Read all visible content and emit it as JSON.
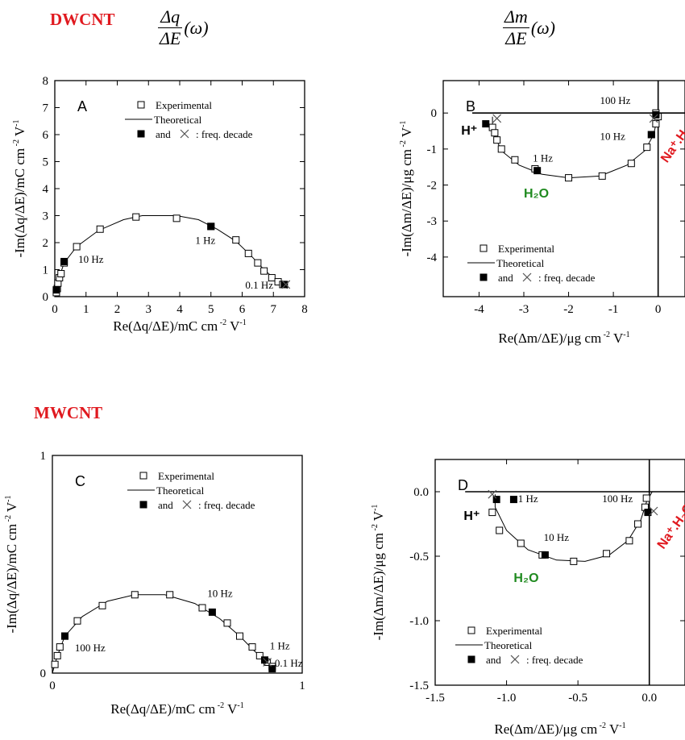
{
  "page": {
    "dwcnt_label": "DWCNT",
    "mwcnt_label": "MWCNT",
    "formula_left": {
      "num": "Δq",
      "den": "ΔE",
      "arg": "(ω)"
    },
    "formula_right": {
      "num": "Δm",
      "den": "ΔE",
      "arg": "(ω)"
    }
  },
  "colors": {
    "section": "#e0191f",
    "water": "#1f8a1f",
    "cation": "#e0191f"
  },
  "chart_data": [
    {
      "id": "A",
      "type": "scatter",
      "panel_label": "A",
      "xlabel": "Re(Δq/ΔE)/mC cm",
      "xlabel_sup": "-2",
      "xlabel_tail": " V",
      "xlabel_sup2": "-1",
      "ylabel": "-Im(Δq/ΔE)/mC cm",
      "ylabel_sup": "-2",
      "ylabel_tail": " V",
      "ylabel_sup2": "-1",
      "xlim": [
        0,
        8
      ],
      "ylim": [
        0,
        8
      ],
      "xticks": [
        "0",
        "1",
        "2",
        "3",
        "4",
        "5",
        "6",
        "7",
        "8"
      ],
      "yticks": [
        "0",
        "1",
        "2",
        "3",
        "4",
        "5",
        "6",
        "7",
        "8"
      ],
      "legend": {
        "experimental": "Experimental",
        "theoretical": "Theoretical",
        "decade": "and",
        "decade2": ": freq. decade",
        "position": "top-right"
      },
      "experimental": [
        [
          0.05,
          0.15
        ],
        [
          0.08,
          0.3
        ],
        [
          0.1,
          0.5
        ],
        [
          0.15,
          0.7
        ],
        [
          0.2,
          0.85
        ],
        [
          0.3,
          1.25
        ],
        [
          0.7,
          1.85
        ],
        [
          1.45,
          2.5
        ],
        [
          2.6,
          2.95
        ],
        [
          3.9,
          2.9
        ],
        [
          5.0,
          2.6
        ],
        [
          5.8,
          2.1
        ],
        [
          6.2,
          1.6
        ],
        [
          6.5,
          1.25
        ],
        [
          6.7,
          0.95
        ],
        [
          6.95,
          0.7
        ],
        [
          7.15,
          0.55
        ],
        [
          7.3,
          0.45
        ]
      ],
      "theoretical": [
        [
          0.0,
          0.0
        ],
        [
          0.05,
          0.3
        ],
        [
          0.12,
          0.65
        ],
        [
          0.3,
          1.25
        ],
        [
          0.7,
          1.85
        ],
        [
          1.4,
          2.45
        ],
        [
          2.2,
          2.85
        ],
        [
          2.8,
          3.0
        ],
        [
          3.9,
          3.0
        ],
        [
          4.6,
          2.85
        ],
        [
          5.2,
          2.5
        ],
        [
          5.8,
          2.05
        ],
        [
          6.3,
          1.5
        ],
        [
          6.7,
          1.0
        ],
        [
          7.0,
          0.7
        ],
        [
          7.3,
          0.45
        ],
        [
          7.45,
          0.3
        ]
      ],
      "filled": [
        [
          0.05,
          0.25
        ],
        [
          0.3,
          1.3
        ],
        [
          5.0,
          2.6
        ],
        [
          7.35,
          0.45
        ]
      ],
      "crosses": [
        [
          7.4,
          0.45
        ]
      ],
      "annotations": [
        {
          "text": "10 Hz",
          "x": 0.75,
          "y": 1.25
        },
        {
          "text": "1 Hz",
          "x": 4.5,
          "y": 1.95
        },
        {
          "text": "0.1 Hz",
          "x": 6.1,
          "y": 0.3
        }
      ]
    },
    {
      "id": "B",
      "type": "scatter",
      "panel_label": "B",
      "xlabel": "Re(Δm/ΔE)/μg cm",
      "xlabel_sup": "-2",
      "xlabel_tail": " V",
      "xlabel_sup2": "-1",
      "ylabel": "-Im(Δm/ΔE)/μg cm",
      "ylabel_sup": "-2",
      "ylabel_tail": " V",
      "ylabel_sup2": "-1",
      "xlim": [
        -4.8,
        0.6
      ],
      "ylim": [
        -5.1,
        0.9
      ],
      "xticks": [
        {
          "v": -4,
          "t": "-4"
        },
        {
          "v": -3,
          "t": "-3"
        },
        {
          "v": -2,
          "t": "-2"
        },
        {
          "v": -1,
          "t": "-1"
        },
        {
          "v": 0,
          "t": "0"
        }
      ],
      "yticks": [
        {
          "v": 0,
          "t": "0"
        },
        {
          "v": -1,
          "t": "-1"
        },
        {
          "v": -2,
          "t": "-2"
        },
        {
          "v": -3,
          "t": "-3"
        },
        {
          "v": -4,
          "t": "-4"
        }
      ],
      "legend": {
        "experimental": "Experimental",
        "theoretical": "Theoretical",
        "decade": "and",
        "decade2": ": freq. decade",
        "position": "bottom-left"
      },
      "experimental": [
        [
          -3.7,
          -0.4
        ],
        [
          -3.65,
          -0.55
        ],
        [
          -3.6,
          -0.75
        ],
        [
          -3.5,
          -1.0
        ],
        [
          -3.2,
          -1.3
        ],
        [
          -2.75,
          -1.55
        ],
        [
          -2.0,
          -1.8
        ],
        [
          -1.25,
          -1.75
        ],
        [
          -0.6,
          -1.4
        ],
        [
          -0.25,
          -0.95
        ],
        [
          -0.15,
          -0.6
        ],
        [
          -0.05,
          -0.3
        ],
        [
          0.0,
          -0.1
        ],
        [
          -0.05,
          0.0
        ]
      ],
      "theoretical": [
        [
          -3.7,
          -0.1
        ],
        [
          -3.7,
          -0.5
        ],
        [
          -3.5,
          -1.05
        ],
        [
          -3.1,
          -1.45
        ],
        [
          -2.6,
          -1.7
        ],
        [
          -2.0,
          -1.8
        ],
        [
          -1.3,
          -1.75
        ],
        [
          -0.7,
          -1.45
        ],
        [
          -0.3,
          -1.05
        ],
        [
          -0.1,
          -0.6
        ],
        [
          -0.03,
          -0.2
        ],
        [
          0.0,
          0.0
        ]
      ],
      "filled": [
        [
          -3.85,
          -0.3
        ],
        [
          -2.7,
          -1.6
        ],
        [
          -0.15,
          -0.6
        ],
        [
          -0.05,
          -0.05
        ]
      ],
      "crosses": [
        [
          -3.6,
          -0.15
        ],
        [
          -0.1,
          -0.15
        ]
      ],
      "hline_at": 0,
      "vline_at": 0,
      "annotations": [
        {
          "text": "100 Hz",
          "x": -1.3,
          "y": 0.25
        },
        {
          "text": "10 Hz",
          "x": -1.3,
          "y": -0.75
        },
        {
          "text": "1 Hz",
          "x": -2.8,
          "y": -1.35
        }
      ],
      "species": [
        {
          "text": "H⁺",
          "kind": "proton",
          "x": -4.4,
          "y": -0.6
        },
        {
          "text": "H₂O",
          "kind": "water",
          "x": -3.0,
          "y": -2.35
        },
        {
          "text": "Na⁺.H₂O",
          "kind": "cation",
          "x": 0.2,
          "y": -1.4
        }
      ]
    },
    {
      "id": "C",
      "type": "scatter",
      "panel_label": "C",
      "xlabel": "Re(Δq/ΔE)/mC cm",
      "xlabel_sup": "-2",
      "xlabel_tail": " V",
      "xlabel_sup2": "-1",
      "ylabel": "-Im(Δq/ΔE)/mC cm",
      "ylabel_sup": "-2",
      "ylabel_tail": " V",
      "ylabel_sup2": "-1",
      "xlim": [
        0,
        1
      ],
      "ylim": [
        0,
        1
      ],
      "xticks": [
        {
          "v": 0,
          "t": "0"
        },
        {
          "v": 1,
          "t": "1"
        }
      ],
      "yticks": [
        {
          "v": 0,
          "t": "0"
        },
        {
          "v": 1,
          "t": "1"
        }
      ],
      "legend": {
        "experimental": "Experimental",
        "theoretical": "Theoretical",
        "decade": "and",
        "decade2": ": freq. decade",
        "position": "top-right"
      },
      "experimental": [
        [
          0.01,
          0.04
        ],
        [
          0.02,
          0.08
        ],
        [
          0.03,
          0.12
        ],
        [
          0.05,
          0.17
        ],
        [
          0.1,
          0.24
        ],
        [
          0.2,
          0.31
        ],
        [
          0.33,
          0.36
        ],
        [
          0.47,
          0.36
        ],
        [
          0.6,
          0.3
        ],
        [
          0.7,
          0.23
        ],
        [
          0.75,
          0.17
        ],
        [
          0.8,
          0.12
        ],
        [
          0.83,
          0.08
        ],
        [
          0.86,
          0.05
        ],
        [
          0.88,
          0.03
        ]
      ],
      "theoretical": [
        [
          0.0,
          0.0
        ],
        [
          0.02,
          0.08
        ],
        [
          0.05,
          0.17
        ],
        [
          0.12,
          0.26
        ],
        [
          0.22,
          0.33
        ],
        [
          0.33,
          0.36
        ],
        [
          0.45,
          0.36
        ],
        [
          0.57,
          0.32
        ],
        [
          0.67,
          0.25
        ],
        [
          0.75,
          0.17
        ],
        [
          0.81,
          0.1
        ],
        [
          0.86,
          0.05
        ],
        [
          0.89,
          0.02
        ]
      ],
      "filled": [
        [
          0.05,
          0.17
        ],
        [
          0.64,
          0.28
        ],
        [
          0.85,
          0.06
        ],
        [
          0.88,
          0.02
        ]
      ],
      "crosses": [
        [
          0.86,
          0.05
        ]
      ],
      "annotations": [
        {
          "text": "100 Hz",
          "x": 0.09,
          "y": 0.1
        },
        {
          "text": "10 Hz",
          "x": 0.62,
          "y": 0.35
        },
        {
          "text": "1 Hz",
          "x": 0.87,
          "y": 0.11
        },
        {
          "text": "0.1 Hz",
          "x": 0.89,
          "y": 0.03
        }
      ]
    },
    {
      "id": "D",
      "type": "scatter",
      "panel_label": "D",
      "xlabel": "Re(Δm/ΔE)/μg cm",
      "xlabel_sup": "-2",
      "xlabel_tail": " V",
      "xlabel_sup2": "-1",
      "ylabel": "-Im(Δm/ΔE)/μg cm",
      "ylabel_sup": "-2",
      "ylabel_tail": " V",
      "ylabel_sup2": "-1",
      "xlim": [
        -1.5,
        0.25
      ],
      "ylim": [
        -1.5,
        0.25
      ],
      "xticks": [
        {
          "v": -1.5,
          "t": "-1.5"
        },
        {
          "v": -1.0,
          "t": "-1.0"
        },
        {
          "v": -0.5,
          "t": "-0.5"
        },
        {
          "v": 0.0,
          "t": "0.0"
        }
      ],
      "yticks": [
        {
          "v": 0.0,
          "t": "0.0"
        },
        {
          "v": -0.5,
          "t": "-0.5"
        },
        {
          "v": -1.0,
          "t": "-1.0"
        },
        {
          "v": -1.5,
          "t": "-1.5"
        }
      ],
      "legend": {
        "experimental": "Experimental",
        "theoretical": "Theoretical",
        "decade": "and",
        "decade2": ": freq. decade",
        "position": "bottom-left"
      },
      "experimental": [
        [
          -1.1,
          -0.16
        ],
        [
          -1.05,
          -0.3
        ],
        [
          -0.9,
          -0.4
        ],
        [
          -0.75,
          -0.49
        ],
        [
          -0.53,
          -0.54
        ],
        [
          -0.3,
          -0.48
        ],
        [
          -0.14,
          -0.38
        ],
        [
          -0.08,
          -0.25
        ],
        [
          -0.03,
          -0.12
        ],
        [
          -0.02,
          -0.05
        ]
      ],
      "theoretical": [
        [
          -1.08,
          -0.02
        ],
        [
          -1.08,
          -0.12
        ],
        [
          -1.0,
          -0.3
        ],
        [
          -0.85,
          -0.45
        ],
        [
          -0.65,
          -0.53
        ],
        [
          -0.45,
          -0.54
        ],
        [
          -0.28,
          -0.49
        ],
        [
          -0.15,
          -0.38
        ],
        [
          -0.06,
          -0.22
        ],
        [
          -0.02,
          -0.08
        ],
        [
          0.02,
          0.0
        ]
      ],
      "filled": [
        [
          -1.07,
          -0.06
        ],
        [
          -0.95,
          -0.06
        ],
        [
          -0.73,
          -0.49
        ],
        [
          -0.01,
          -0.16
        ]
      ],
      "crosses": [
        [
          -1.1,
          -0.02
        ],
        [
          0.03,
          -0.15
        ]
      ],
      "hline_at": 0,
      "vline_at": 0,
      "annotations": [
        {
          "text": "1 Hz",
          "x": -0.92,
          "y": -0.08
        },
        {
          "text": "100 Hz",
          "x": -0.33,
          "y": -0.08
        },
        {
          "text": "10 Hz",
          "x": -0.74,
          "y": -0.38
        }
      ],
      "species": [
        {
          "text": "H⁺",
          "kind": "proton",
          "x": -1.3,
          "y": -0.22
        },
        {
          "text": "H₂O",
          "kind": "water",
          "x": -0.95,
          "y": -0.7
        },
        {
          "text": "Na⁺.H₂O",
          "kind": "cation",
          "x": 0.1,
          "y": -0.45
        }
      ]
    }
  ]
}
